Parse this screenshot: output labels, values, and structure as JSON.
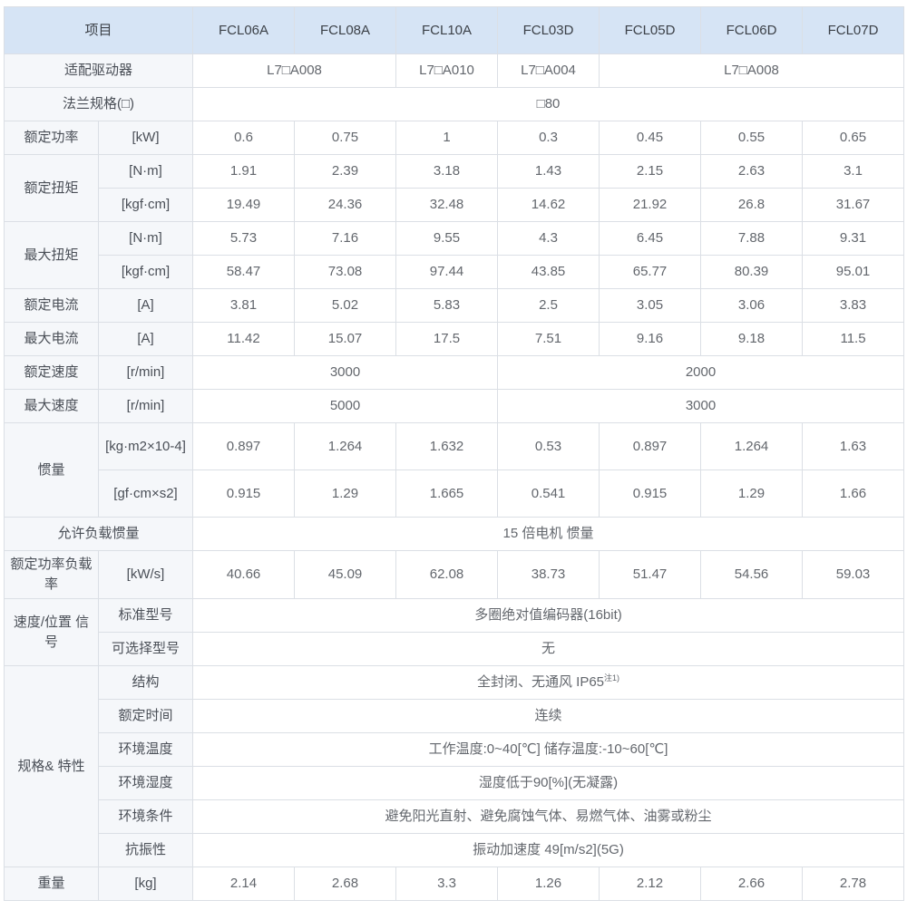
{
  "table": {
    "header": {
      "cells": [
        {
          "t": "项目",
          "cs": 2,
          "type": "h"
        },
        {
          "t": "FCL06A",
          "type": "h"
        },
        {
          "t": "FCL08A",
          "type": "h"
        },
        {
          "t": "FCL10A",
          "type": "h"
        },
        {
          "t": "FCL03D",
          "type": "h"
        },
        {
          "t": "FCL05D",
          "type": "h"
        },
        {
          "t": "FCL06D",
          "type": "h"
        },
        {
          "t": "FCL07D",
          "type": "h"
        }
      ]
    },
    "rows": [
      [
        {
          "t": "适配驱动器",
          "cs": 2,
          "type": "l"
        },
        {
          "t": "L7□A008",
          "cs": 2
        },
        {
          "t": "L7□A010"
        },
        {
          "t": "L7□A004"
        },
        {
          "t": "L7□A008",
          "cs": 3
        }
      ],
      [
        {
          "t": "法兰规格(□)",
          "cs": 2,
          "type": "l"
        },
        {
          "t": "□80",
          "cs": 7
        }
      ],
      [
        {
          "t": "额定功率",
          "type": "l"
        },
        {
          "t": "[kW]",
          "type": "u"
        },
        {
          "t": "0.6"
        },
        {
          "t": "0.75"
        },
        {
          "t": "1"
        },
        {
          "t": "0.3"
        },
        {
          "t": "0.45"
        },
        {
          "t": "0.55"
        },
        {
          "t": "0.65"
        }
      ],
      [
        {
          "t": "额定扭矩",
          "rs": 2,
          "type": "l"
        },
        {
          "t": "[N·m]",
          "type": "u"
        },
        {
          "t": "1.91"
        },
        {
          "t": "2.39"
        },
        {
          "t": "3.18"
        },
        {
          "t": "1.43"
        },
        {
          "t": "2.15"
        },
        {
          "t": "2.63"
        },
        {
          "t": "3.1"
        }
      ],
      [
        {
          "t": "[kgf·cm]",
          "type": "u"
        },
        {
          "t": "19.49"
        },
        {
          "t": "24.36"
        },
        {
          "t": "32.48"
        },
        {
          "t": "14.62"
        },
        {
          "t": "21.92"
        },
        {
          "t": "26.8"
        },
        {
          "t": "31.67"
        }
      ],
      [
        {
          "t": "最大扭矩",
          "rs": 2,
          "type": "l"
        },
        {
          "t": "[N·m]",
          "type": "u"
        },
        {
          "t": "5.73"
        },
        {
          "t": "7.16"
        },
        {
          "t": "9.55"
        },
        {
          "t": "4.3"
        },
        {
          "t": "6.45"
        },
        {
          "t": "7.88"
        },
        {
          "t": "9.31"
        }
      ],
      [
        {
          "t": "[kgf·cm]",
          "type": "u"
        },
        {
          "t": "58.47"
        },
        {
          "t": "73.08"
        },
        {
          "t": "97.44"
        },
        {
          "t": "43.85"
        },
        {
          "t": "65.77"
        },
        {
          "t": "80.39"
        },
        {
          "t": "95.01"
        }
      ],
      [
        {
          "t": "额定电流",
          "type": "l"
        },
        {
          "t": "[A]",
          "type": "u"
        },
        {
          "t": "3.81"
        },
        {
          "t": "5.02"
        },
        {
          "t": "5.83"
        },
        {
          "t": "2.5"
        },
        {
          "t": "3.05"
        },
        {
          "t": "3.06"
        },
        {
          "t": "3.83"
        }
      ],
      [
        {
          "t": "最大电流",
          "type": "l"
        },
        {
          "t": "[A]",
          "type": "u"
        },
        {
          "t": "11.42"
        },
        {
          "t": "15.07"
        },
        {
          "t": "17.5"
        },
        {
          "t": "7.51"
        },
        {
          "t": "9.16"
        },
        {
          "t": "9.18"
        },
        {
          "t": "11.5"
        }
      ],
      [
        {
          "t": "额定速度",
          "type": "l"
        },
        {
          "t": "[r/min]",
          "type": "u"
        },
        {
          "t": "3000",
          "cs": 3
        },
        {
          "t": "2000",
          "cs": 4
        }
      ],
      [
        {
          "t": "最大速度",
          "type": "l"
        },
        {
          "t": "[r/min]",
          "type": "u"
        },
        {
          "t": "5000",
          "cs": 3
        },
        {
          "t": "3000",
          "cs": 4
        }
      ],
      [
        {
          "t": "惯量",
          "rs": 2,
          "type": "l"
        },
        {
          "t": "[kg·m2×10-4]",
          "type": "u"
        },
        {
          "t": "0.897"
        },
        {
          "t": "1.264"
        },
        {
          "t": "1.632"
        },
        {
          "t": "0.53"
        },
        {
          "t": "0.897"
        },
        {
          "t": "1.264"
        },
        {
          "t": "1.63"
        }
      ],
      [
        {
          "t": "[gf·cm×s2]",
          "type": "u"
        },
        {
          "t": "0.915"
        },
        {
          "t": "1.29"
        },
        {
          "t": "1.665"
        },
        {
          "t": "0.541"
        },
        {
          "t": "0.915"
        },
        {
          "t": "1.29"
        },
        {
          "t": "1.66"
        }
      ],
      [
        {
          "t": "允许负载惯量",
          "cs": 2,
          "type": "l"
        },
        {
          "t": "15 倍电机 惯量",
          "cs": 7
        }
      ],
      [
        {
          "t": "额定功率负载率",
          "type": "l"
        },
        {
          "t": "[kW/s]",
          "type": "u"
        },
        {
          "t": "40.66"
        },
        {
          "t": "45.09"
        },
        {
          "t": "62.08"
        },
        {
          "t": "38.73"
        },
        {
          "t": "51.47"
        },
        {
          "t": "54.56"
        },
        {
          "t": "59.03"
        }
      ],
      [
        {
          "t": "速度/位置 信号",
          "rs": 2,
          "type": "l"
        },
        {
          "t": "标准型号",
          "type": "u"
        },
        {
          "t": "多圈绝对值编码器(16bit)",
          "cs": 7
        }
      ],
      [
        {
          "t": "可选择型号",
          "type": "u"
        },
        {
          "t": "无",
          "cs": 7
        }
      ],
      [
        {
          "t": "规格& 特性",
          "rs": 6,
          "type": "l"
        },
        {
          "t": "结构",
          "type": "u"
        },
        {
          "t": "全封闭、无通风 IP65",
          "sup": "注1)",
          "cs": 7
        }
      ],
      [
        {
          "t": "额定时间",
          "type": "u"
        },
        {
          "t": "连续",
          "cs": 7
        }
      ],
      [
        {
          "t": "环境温度",
          "type": "u"
        },
        {
          "t": "工作温度:0~40[℃]  储存温度:-10~60[℃]",
          "cs": 7
        }
      ],
      [
        {
          "t": "环境湿度",
          "type": "u"
        },
        {
          "t": "湿度低于90[%](无凝露)",
          "cs": 7
        }
      ],
      [
        {
          "t": "环境条件",
          "type": "u"
        },
        {
          "t": "避免阳光直射、避免腐蚀气体、易燃气体、油雾或粉尘",
          "cs": 7
        }
      ],
      [
        {
          "t": "抗振性",
          "type": "u"
        },
        {
          "t": "振动加速度 49[m/s2](5G)",
          "cs": 7
        }
      ],
      [
        {
          "t": "重量",
          "type": "l"
        },
        {
          "t": "[kg]",
          "type": "u"
        },
        {
          "t": "2.14"
        },
        {
          "t": "2.68"
        },
        {
          "t": "3.3"
        },
        {
          "t": "1.26"
        },
        {
          "t": "2.12"
        },
        {
          "t": "2.66"
        },
        {
          "t": "2.78"
        }
      ]
    ],
    "colors": {
      "header_bg": "#d6e4f5",
      "label_bg": "#f5f7fa",
      "cell_bg": "#ffffff",
      "border": "#dbdfe5",
      "header_text": "#3c4148",
      "label_text": "#4a4f57",
      "value_text": "#63676d"
    }
  }
}
